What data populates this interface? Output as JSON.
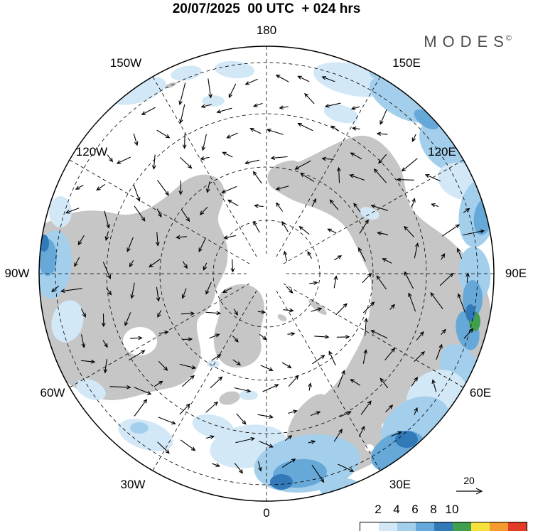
{
  "header": {
    "title": "20/07/2025  00 UTC  + 024 hrs",
    "logo_text": "MODES",
    "logo_mark": "©"
  },
  "chart_data": {
    "type": "map",
    "projection": "north-polar-stereographic",
    "title": "20/07/2025  00 UTC  + 024 hrs",
    "valid_date": "20/07/2025",
    "valid_time": "00 UTC",
    "lead_time_hours": 24,
    "meridian_labels": [
      "180",
      "150W",
      "150E",
      "120W",
      "120E",
      "90W",
      "90E",
      "60W",
      "60E",
      "30W",
      "30E",
      "0"
    ],
    "latitude_circle_count": 4,
    "reference_arrow": {
      "label": "20"
    },
    "colorbar": {
      "tick_labels": [
        "2",
        "4",
        "6",
        "8",
        "10"
      ],
      "colors": [
        "#ffffff",
        "#d2e8f7",
        "#a3cfec",
        "#66a9d8",
        "#3279b8",
        "#3f9f4c",
        "#f7e23c",
        "#f49a2e",
        "#e23b27"
      ]
    },
    "land_color": "#c6c6c6",
    "background_color": "#ffffff",
    "notable_features": [
      "wind vector field over the Northern Hemisphere",
      "light-to-dark blue shading bands in midlatitudes",
      "intense shading (green/yellow/red) near eastern rim between 90E and 120E",
      "large blue shaded areas near 150E sector, 30E-60E sector and near 0 meridian"
    ]
  }
}
